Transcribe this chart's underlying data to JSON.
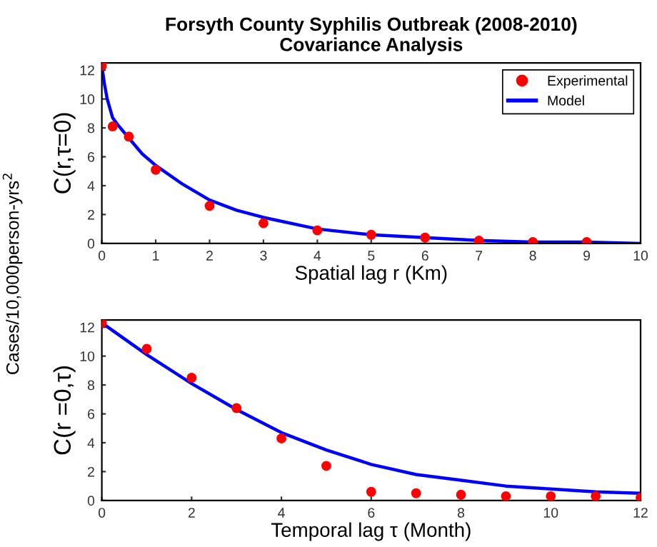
{
  "chart_data": [
    {
      "type": "scatter",
      "title": "Forsyth County Syphilis Outbreak (2008-2010)",
      "subtitle": "Covariance Analysis",
      "xlabel": "Spatial lag r (Km)",
      "ylabel": "C(r,τ=0)",
      "annotations": [
        "Cases/10,000person-yrs$^{2}$"
      ],
      "xlim": [
        0,
        10
      ],
      "xticks": [
        0,
        1,
        2,
        3,
        4,
        5,
        6,
        7,
        8,
        9,
        10
      ],
      "ylim": [
        0,
        12.5
      ],
      "yticks": [
        0,
        2,
        4,
        6,
        8,
        10,
        12
      ],
      "legend": "top right",
      "grid": false,
      "series": [
        {
          "name": "Experimental",
          "marker": "circle",
          "color": "#ff0000",
          "x": [
            0,
            0.2,
            0.5,
            1,
            2,
            3,
            4,
            5,
            6,
            7,
            8,
            9
          ],
          "values": [
            12.3,
            8.1,
            7.4,
            5.1,
            2.6,
            1.4,
            0.9,
            0.6,
            0.4,
            0.2,
            0.1,
            0.1
          ]
        },
        {
          "name": "Model",
          "type": "line",
          "line_style": "solid",
          "color": "#0000ff",
          "x": [
            0,
            0.05,
            0.1,
            0.2,
            0.3,
            0.5,
            0.75,
            1,
            1.5,
            2,
            2.5,
            3,
            4,
            5,
            6,
            7,
            8,
            9,
            10
          ],
          "values": [
            12.3,
            11,
            10,
            8.7,
            8.2,
            7.3,
            6.2,
            5.4,
            4.1,
            3.0,
            2.3,
            1.8,
            1.0,
            0.6,
            0.4,
            0.2,
            0.1,
            0.1,
            0.0
          ]
        }
      ]
    },
    {
      "type": "scatter",
      "xlabel": "Temporal lag τ (Month)",
      "ylabel": "C(r =0,τ)",
      "xlim": [
        0,
        12
      ],
      "xticks": [
        0,
        2,
        4,
        6,
        8,
        10,
        12
      ],
      "ylim": [
        0,
        12.5
      ],
      "yticks": [
        0,
        2,
        4,
        6,
        8,
        10,
        12
      ],
      "grid": false,
      "series": [
        {
          "marker": "circle",
          "color": "#ff0000",
          "x": [
            0,
            1,
            2,
            3,
            4,
            5,
            6,
            7,
            8,
            9,
            10,
            11,
            12
          ],
          "values": [
            12.3,
            10.5,
            8.5,
            6.4,
            4.3,
            2.4,
            0.6,
            0.5,
            0.4,
            0.3,
            0.3,
            0.3,
            0.2
          ]
        },
        {
          "type": "line",
          "line_style": "solid",
          "color": "#0000ff",
          "x": [
            0,
            1,
            2,
            3,
            4,
            5,
            6,
            7,
            8,
            9,
            10,
            11,
            12
          ],
          "values": [
            12.3,
            10.1,
            8.1,
            6.3,
            4.7,
            3.5,
            2.5,
            1.8,
            1.4,
            1.0,
            0.8,
            0.6,
            0.5
          ]
        }
      ]
    }
  ]
}
